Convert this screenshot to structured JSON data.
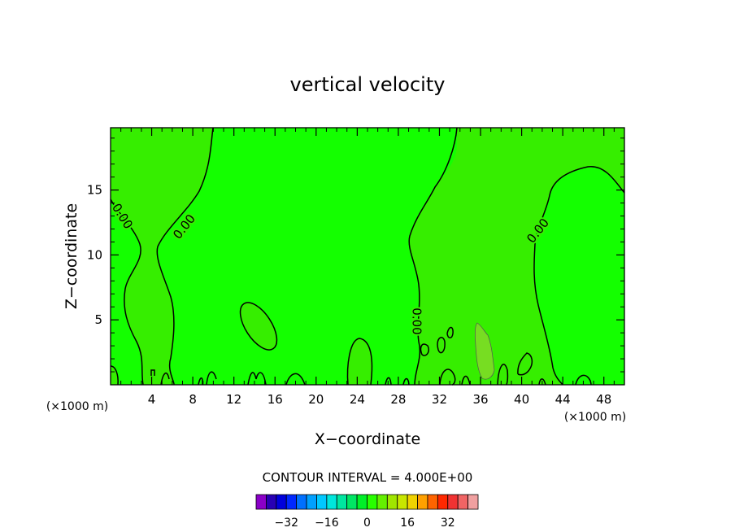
{
  "chart_data": {
    "type": "contour",
    "title": "vertical velocity",
    "xlabel": "X−coordinate",
    "ylabel": "Z−coordinate",
    "x_unit_left": "(×1000 m)",
    "x_unit_right": "(×1000 m)",
    "xlim": [
      0,
      50
    ],
    "ylim": [
      0,
      19.8
    ],
    "x_ticks": [
      4,
      8,
      12,
      16,
      20,
      24,
      28,
      32,
      36,
      40,
      44,
      48
    ],
    "y_ticks": [
      5,
      10,
      15
    ],
    "contour_label": "0.00",
    "contour_interval_text": "CONTOUR INTERVAL = 4.000E+00",
    "colorbar": {
      "ticks": [
        -32,
        -16,
        0,
        16,
        32
      ],
      "tick_labels": [
        "−32",
        "−16",
        "0",
        "16",
        "32"
      ],
      "colors": [
        "#8a00c8",
        "#2800b4",
        "#0000dc",
        "#0028ff",
        "#0070ff",
        "#00a0ff",
        "#00c8ff",
        "#00e6dc",
        "#00e6a0",
        "#00e664",
        "#00f028",
        "#28ff00",
        "#64f000",
        "#a0e600",
        "#c8e600",
        "#f0d200",
        "#ffa000",
        "#ff6400",
        "#ff2800",
        "#f03232",
        "#f06464",
        "#f0a0a0"
      ]
    },
    "colors": {
      "background_field": "#14ff00",
      "positive_region": "#36ee00",
      "strong_updraft": "#77dd22"
    }
  }
}
